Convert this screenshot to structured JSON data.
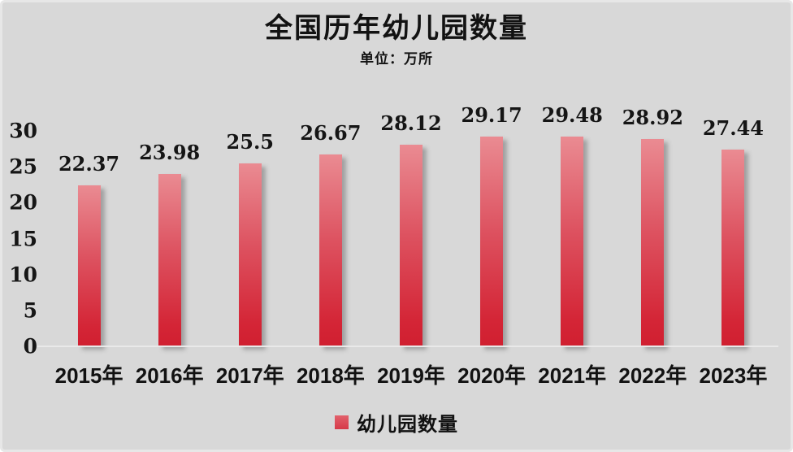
{
  "header": {
    "title": "全国历年幼儿园数量",
    "subtitle": "单位：万所"
  },
  "legend": {
    "label": "幼儿园数量"
  },
  "chart_data": {
    "type": "bar",
    "title": "全国历年幼儿园数量",
    "subtitle": "单位：万所",
    "xlabel": "",
    "ylabel": "",
    "unit": "万所",
    "categories": [
      "2015年",
      "2016年",
      "2017年",
      "2018年",
      "2019年",
      "2020年",
      "2021年",
      "2022年",
      "2023年"
    ],
    "series": [
      {
        "name": "幼儿园数量",
        "values": [
          22.37,
          23.98,
          25.5,
          26.67,
          28.12,
          29.17,
          29.48,
          28.92,
          27.44
        ]
      }
    ],
    "data_labels_visible": true,
    "ylim": [
      0,
      30
    ],
    "yticks": [
      0,
      5,
      10,
      15,
      20,
      25,
      30
    ],
    "grid": false,
    "legend_position": "bottom",
    "colors": {
      "bar_gradient_top": "#ea8b92",
      "bar_gradient_bottom": "#d01f30",
      "legend_swatch": "#d94450",
      "background": "#d8d8d8",
      "text": "#121212",
      "baseline": "#e9e9e9"
    }
  }
}
